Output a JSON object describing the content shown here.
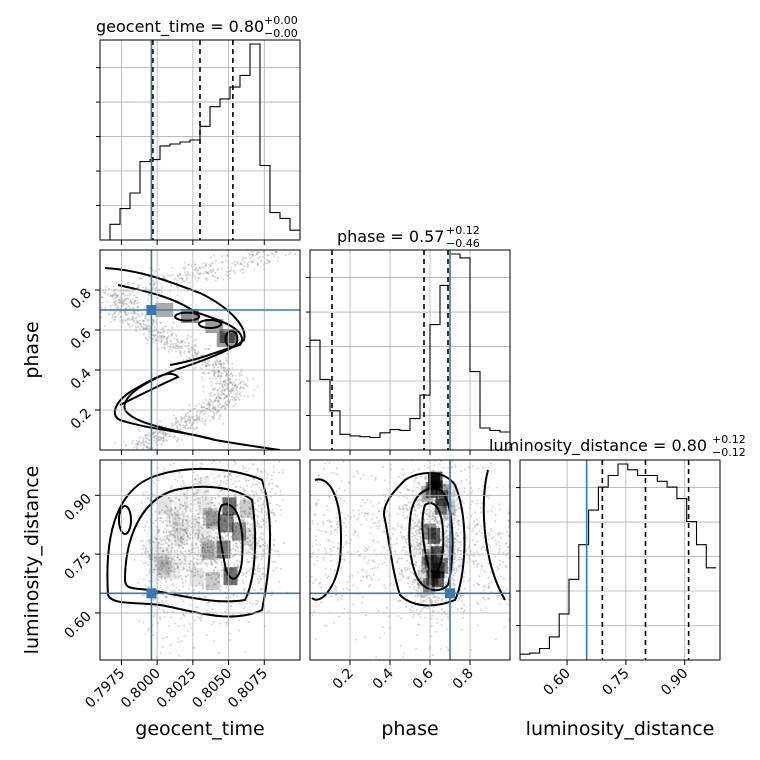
{
  "chart_data": {
    "type": "corner",
    "parameters": [
      {
        "key": "geocent_time",
        "label": "geocent_time",
        "range": [
          0.796,
          0.81
        ],
        "ticks": [
          0.7975,
          0.8,
          0.8025,
          0.805,
          0.8075
        ],
        "tick_labels": [
          "0.7975",
          "0.8000",
          "0.8025",
          "0.8050",
          "0.8075"
        ],
        "title_main": "geocent_time = 0.80",
        "title_sup": "+0.00",
        "title_sub": "−0.00",
        "quantiles": [
          0.7997,
          0.803,
          0.8053
        ],
        "truth": 0.7996
      },
      {
        "key": "phase",
        "label": "phase",
        "range": [
          0.0,
          1.0
        ],
        "ticks": [
          0.2,
          0.4,
          0.6,
          0.8
        ],
        "tick_labels": [
          "0.2",
          "0.4",
          "0.6",
          "0.8"
        ],
        "title_main": "phase = 0.57",
        "title_sup": "+0.12",
        "title_sub": "−0.46",
        "quantiles": [
          0.11,
          0.57,
          0.69
        ],
        "truth": 0.7
      },
      {
        "key": "luminosity_distance",
        "label": "luminosity_distance",
        "range": [
          0.48,
          0.99
        ],
        "ticks": [
          0.6,
          0.75,
          0.9
        ],
        "tick_labels": [
          "0.60",
          "0.75",
          "0.90"
        ],
        "title_main": "luminosity_distance = 0.80",
        "title_sup": "+0.12",
        "title_sub": "−0.12",
        "quantiles": [
          0.69,
          0.8,
          0.91
        ],
        "truth": 0.65
      }
    ],
    "histograms": {
      "geocent_time": {
        "edges_start": 0.796,
        "bin_width": 0.0007,
        "counts": [
          0,
          0.4,
          0.8,
          1.2,
          2.0,
          2.05,
          2.4,
          2.45,
          2.5,
          2.55,
          2.9,
          3.4,
          3.6,
          3.9,
          4.2,
          5.0,
          1.9,
          0.7,
          0.55,
          0.25,
          0.05,
          0.0
        ]
      },
      "phase": {
        "edges_start": 0.0,
        "bin_width": 0.05,
        "counts": [
          1.4,
          0.9,
          0.5,
          0.2,
          0.18,
          0.17,
          0.16,
          0.22,
          0.26,
          0.25,
          0.4,
          0.7,
          1.6,
          2.1,
          2.5,
          2.45,
          1.0,
          0.28,
          0.25,
          0.23
        ]
      },
      "luminosity_distance": {
        "edges_start": 0.48,
        "bin_width": 0.025,
        "counts": [
          0.05,
          0.06,
          0.1,
          0.2,
          0.4,
          0.7,
          1.0,
          1.3,
          1.5,
          1.6,
          1.7,
          1.65,
          1.6,
          1.6,
          1.55,
          1.5,
          1.4,
          1.2,
          1.0,
          0.8
        ]
      }
    },
    "grid": true
  }
}
